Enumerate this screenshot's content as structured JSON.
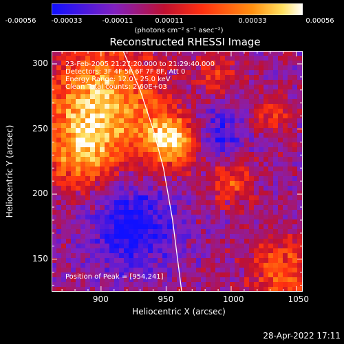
{
  "colorbar": {
    "tick_labels": [
      "-0.00056",
      "-0.00033",
      "-0.00011",
      "0.00011",
      "0.00033",
      "0.00056"
    ],
    "unit_label": "(photons cm⁻² s⁻¹ asec⁻²)",
    "range": [
      -0.00056,
      0.00056
    ],
    "colors": [
      "#1010ff",
      "#8020c0",
      "#c01030",
      "#ff3010",
      "#ff9010",
      "#ffe060",
      "#ffffff"
    ]
  },
  "chart_data": {
    "type": "heatmap",
    "title": "Reconstructed RHESSI Image",
    "xlabel": "Heliocentric X (arcsec)",
    "ylabel": "Heliocentric Y (arcsec)",
    "xlim": [
      862,
      1055
    ],
    "ylim": [
      125,
      310
    ],
    "x_ticks": [
      900,
      950,
      1000,
      1050
    ],
    "y_ticks": [
      150,
      200,
      250,
      300
    ],
    "annotations": {
      "time": "23-Feb-2005 21:27:20.000 to 21:29:40.000",
      "detectors": "Detectors: 3F 4F 5F 6F 7F 8F, Att 0",
      "energy": "Energy Range: 12.0 - 25.0 keV",
      "algorithm": "Clean     Total counts: 2.60E+03",
      "peak": "Position of Peak = [954,241]"
    },
    "peak": [
      954,
      241
    ],
    "limb_curve": [
      [
        917,
        310
      ],
      [
        930,
        280
      ],
      [
        940,
        250
      ],
      [
        948,
        220
      ],
      [
        955,
        180
      ],
      [
        962,
        125
      ]
    ],
    "bright_regions": [
      {
        "x": 900,
        "y": 270,
        "sigma": 30,
        "amp": 0.9
      },
      {
        "x": 954,
        "y": 241,
        "sigma": 14,
        "amp": 1.0
      },
      {
        "x": 885,
        "y": 230,
        "sigma": 18,
        "amp": 0.6
      },
      {
        "x": 1040,
        "y": 140,
        "sigma": 18,
        "amp": 0.55
      },
      {
        "x": 1000,
        "y": 210,
        "sigma": 12,
        "amp": 0.5
      },
      {
        "x": 1030,
        "y": 260,
        "sigma": 10,
        "amp": 0.4
      },
      {
        "x": 990,
        "y": 290,
        "sigma": 10,
        "amp": 0.45
      }
    ],
    "dark_regions": [
      {
        "x": 925,
        "y": 175,
        "sigma": 22,
        "amp": -0.6
      },
      {
        "x": 990,
        "y": 245,
        "sigma": 15,
        "amp": -0.4
      }
    ]
  },
  "timestamp": "28-Apr-2022 17:11"
}
